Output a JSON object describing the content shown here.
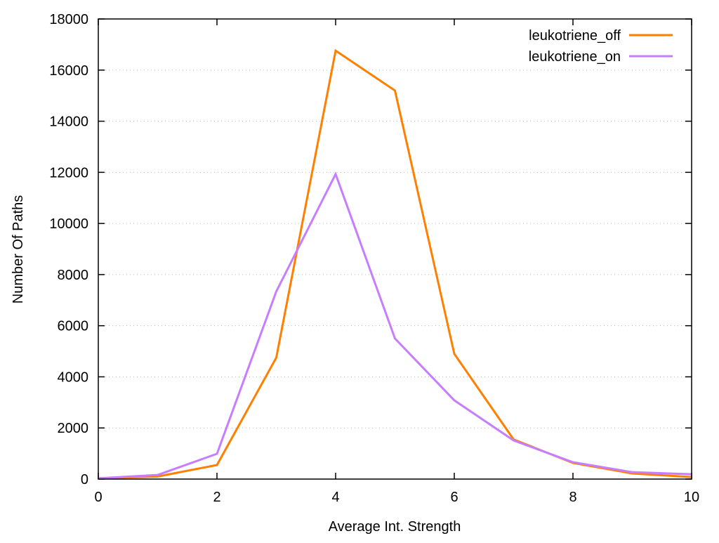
{
  "chart_data": {
    "type": "line",
    "title": "",
    "xlabel": "Average Int. Strength",
    "ylabel": "Number Of Paths",
    "xlim": [
      0,
      10
    ],
    "ylim": [
      0,
      18000
    ],
    "xticks": [
      0,
      2,
      4,
      6,
      8,
      10
    ],
    "yticks": [
      0,
      2000,
      4000,
      6000,
      8000,
      10000,
      12000,
      14000,
      16000,
      18000
    ],
    "grid": "horizontal dotted",
    "legend_position": "top-right",
    "x": [
      0,
      1,
      2,
      3,
      4,
      5,
      6,
      7,
      8,
      9,
      10
    ],
    "series": [
      {
        "name": "leukotriene_off",
        "color": "#ff7f00",
        "values": [
          30,
          100,
          550,
          4750,
          16760,
          15200,
          4900,
          1550,
          630,
          220,
          80
        ]
      },
      {
        "name": "leukotriene_on",
        "color": "#c77dff",
        "values": [
          30,
          160,
          990,
          7340,
          11930,
          5500,
          3080,
          1510,
          660,
          270,
          190
        ]
      }
    ]
  }
}
